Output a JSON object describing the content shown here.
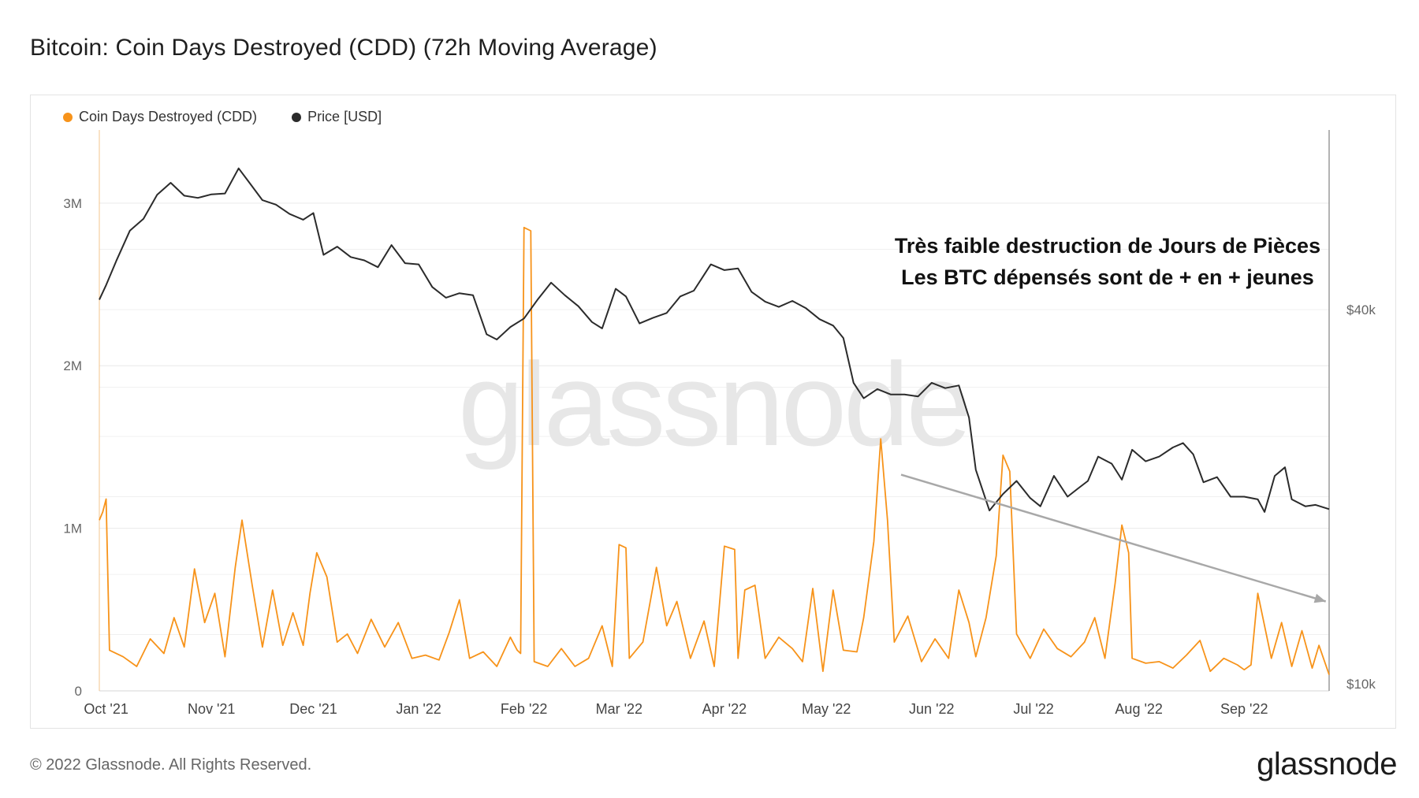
{
  "title": "Bitcoin: Coin Days Destroyed (CDD) (72h Moving Average)",
  "footer": "© 2022 Glassnode. All Rights Reserved.",
  "brand": "glassnode",
  "watermark": "glassnode",
  "annotation": {
    "line1": "Très faible destruction de Jours de Pièces",
    "line2": "Les BTC dépensés sont de + en + jeunes"
  },
  "colors": {
    "cdd": "#f7931a",
    "price": "#2b2b2b",
    "trend_arrow": "#a8a8a8",
    "grid": "#e9e9e9"
  },
  "chart_data": {
    "type": "line",
    "title": "Bitcoin: Coin Days Destroyed (CDD) (72h Moving Average)",
    "x_range": [
      "2021-09-29",
      "2022-09-26"
    ],
    "x_ticks": [
      {
        "label": "Oct '21",
        "date": "2021-10-01"
      },
      {
        "label": "Nov '21",
        "date": "2021-11-01"
      },
      {
        "label": "Dec '21",
        "date": "2021-12-01"
      },
      {
        "label": "Jan '22",
        "date": "2022-01-01"
      },
      {
        "label": "Feb '22",
        "date": "2022-02-01"
      },
      {
        "label": "Mar '22",
        "date": "2022-03-01"
      },
      {
        "label": "Apr '22",
        "date": "2022-04-01"
      },
      {
        "label": "May '22",
        "date": "2022-05-01"
      },
      {
        "label": "Jun '22",
        "date": "2022-06-01"
      },
      {
        "label": "Jul '22",
        "date": "2022-07-01"
      },
      {
        "label": "Aug '22",
        "date": "2022-08-01"
      },
      {
        "label": "Sep '22",
        "date": "2022-09-01"
      }
    ],
    "y_left": {
      "min": 0,
      "max": 3450000,
      "ticks": [
        {
          "label": "0",
          "value": 0
        },
        {
          "label": "1M",
          "value": 1000000
        },
        {
          "label": "2M",
          "value": 2000000
        },
        {
          "label": "3M",
          "value": 3000000
        }
      ]
    },
    "y_right": {
      "scale": "log",
      "ticks": [
        {
          "label": "$10k",
          "value": 10000
        },
        {
          "label": "$40k",
          "value": 40000
        }
      ]
    },
    "legend": [
      {
        "name": "Coin Days Destroyed (CDD)",
        "color": "#f7931a"
      },
      {
        "name": "Price [USD]",
        "color": "#2b2b2b"
      }
    ],
    "series": [
      {
        "name": "Coin Days Destroyed (CDD)",
        "axis": "left",
        "color": "#f7931a",
        "points": [
          [
            "2021-09-29",
            1050000
          ],
          [
            "2021-09-30",
            1100000
          ],
          [
            "2021-10-01",
            1180000
          ],
          [
            "2021-10-02",
            250000
          ],
          [
            "2021-10-06",
            210000
          ],
          [
            "2021-10-10",
            150000
          ],
          [
            "2021-10-14",
            320000
          ],
          [
            "2021-10-18",
            230000
          ],
          [
            "2021-10-21",
            450000
          ],
          [
            "2021-10-24",
            270000
          ],
          [
            "2021-10-27",
            750000
          ],
          [
            "2021-10-30",
            420000
          ],
          [
            "2021-11-02",
            600000
          ],
          [
            "2021-11-05",
            210000
          ],
          [
            "2021-11-08",
            760000
          ],
          [
            "2021-11-10",
            1050000
          ],
          [
            "2021-11-13",
            650000
          ],
          [
            "2021-11-16",
            270000
          ],
          [
            "2021-11-19",
            620000
          ],
          [
            "2021-11-22",
            280000
          ],
          [
            "2021-11-25",
            480000
          ],
          [
            "2021-11-28",
            280000
          ],
          [
            "2021-11-30",
            600000
          ],
          [
            "2021-12-02",
            850000
          ],
          [
            "2021-12-05",
            700000
          ],
          [
            "2021-12-08",
            300000
          ],
          [
            "2021-12-11",
            350000
          ],
          [
            "2021-12-14",
            230000
          ],
          [
            "2021-12-18",
            440000
          ],
          [
            "2021-12-22",
            270000
          ],
          [
            "2021-12-26",
            420000
          ],
          [
            "2021-12-30",
            200000
          ],
          [
            "2022-01-03",
            220000
          ],
          [
            "2022-01-07",
            190000
          ],
          [
            "2022-01-10",
            360000
          ],
          [
            "2022-01-13",
            560000
          ],
          [
            "2022-01-16",
            200000
          ],
          [
            "2022-01-20",
            240000
          ],
          [
            "2022-01-24",
            150000
          ],
          [
            "2022-01-28",
            330000
          ],
          [
            "2022-01-30",
            250000
          ],
          [
            "2022-01-31",
            230000
          ],
          [
            "2022-02-01",
            2850000
          ],
          [
            "2022-02-03",
            2830000
          ],
          [
            "2022-02-04",
            180000
          ],
          [
            "2022-02-08",
            150000
          ],
          [
            "2022-02-12",
            260000
          ],
          [
            "2022-02-16",
            150000
          ],
          [
            "2022-02-20",
            200000
          ],
          [
            "2022-02-24",
            400000
          ],
          [
            "2022-02-27",
            150000
          ],
          [
            "2022-03-01",
            900000
          ],
          [
            "2022-03-03",
            880000
          ],
          [
            "2022-03-04",
            200000
          ],
          [
            "2022-03-08",
            300000
          ],
          [
            "2022-03-12",
            760000
          ],
          [
            "2022-03-15",
            400000
          ],
          [
            "2022-03-18",
            550000
          ],
          [
            "2022-03-22",
            200000
          ],
          [
            "2022-03-26",
            430000
          ],
          [
            "2022-03-29",
            150000
          ],
          [
            "2022-04-01",
            890000
          ],
          [
            "2022-04-04",
            870000
          ],
          [
            "2022-04-05",
            200000
          ],
          [
            "2022-04-07",
            620000
          ],
          [
            "2022-04-10",
            650000
          ],
          [
            "2022-04-13",
            200000
          ],
          [
            "2022-04-17",
            330000
          ],
          [
            "2022-04-21",
            260000
          ],
          [
            "2022-04-24",
            180000
          ],
          [
            "2022-04-27",
            630000
          ],
          [
            "2022-04-30",
            120000
          ],
          [
            "2022-05-03",
            620000
          ],
          [
            "2022-05-06",
            250000
          ],
          [
            "2022-05-10",
            240000
          ],
          [
            "2022-05-12",
            450000
          ],
          [
            "2022-05-15",
            920000
          ],
          [
            "2022-05-17",
            1550000
          ],
          [
            "2022-05-19",
            1050000
          ],
          [
            "2022-05-21",
            300000
          ],
          [
            "2022-05-25",
            460000
          ],
          [
            "2022-05-29",
            180000
          ],
          [
            "2022-06-02",
            320000
          ],
          [
            "2022-06-06",
            200000
          ],
          [
            "2022-06-09",
            620000
          ],
          [
            "2022-06-12",
            420000
          ],
          [
            "2022-06-14",
            210000
          ],
          [
            "2022-06-17",
            450000
          ],
          [
            "2022-06-20",
            830000
          ],
          [
            "2022-06-22",
            1450000
          ],
          [
            "2022-06-24",
            1350000
          ],
          [
            "2022-06-26",
            350000
          ],
          [
            "2022-06-30",
            200000
          ],
          [
            "2022-07-04",
            380000
          ],
          [
            "2022-07-08",
            260000
          ],
          [
            "2022-07-12",
            210000
          ],
          [
            "2022-07-16",
            300000
          ],
          [
            "2022-07-19",
            450000
          ],
          [
            "2022-07-22",
            200000
          ],
          [
            "2022-07-25",
            660000
          ],
          [
            "2022-07-27",
            1020000
          ],
          [
            "2022-07-29",
            850000
          ],
          [
            "2022-07-30",
            200000
          ],
          [
            "2022-08-03",
            170000
          ],
          [
            "2022-08-07",
            180000
          ],
          [
            "2022-08-11",
            140000
          ],
          [
            "2022-08-15",
            220000
          ],
          [
            "2022-08-19",
            310000
          ],
          [
            "2022-08-22",
            120000
          ],
          [
            "2022-08-26",
            200000
          ],
          [
            "2022-08-30",
            160000
          ],
          [
            "2022-09-01",
            130000
          ],
          [
            "2022-09-03",
            160000
          ],
          [
            "2022-09-05",
            600000
          ],
          [
            "2022-09-07",
            400000
          ],
          [
            "2022-09-09",
            200000
          ],
          [
            "2022-09-12",
            420000
          ],
          [
            "2022-09-15",
            150000
          ],
          [
            "2022-09-18",
            370000
          ],
          [
            "2022-09-21",
            140000
          ],
          [
            "2022-09-23",
            280000
          ],
          [
            "2022-09-26",
            100000
          ]
        ]
      },
      {
        "name": "Price [USD]",
        "axis": "right",
        "color": "#2b2b2b",
        "points": [
          [
            "2021-09-29",
            41500
          ],
          [
            "2021-10-01",
            43800
          ],
          [
            "2021-10-04",
            47900
          ],
          [
            "2021-10-08",
            53600
          ],
          [
            "2021-10-12",
            56000
          ],
          [
            "2021-10-16",
            61200
          ],
          [
            "2021-10-20",
            64000
          ],
          [
            "2021-10-24",
            61000
          ],
          [
            "2021-10-28",
            60500
          ],
          [
            "2021-11-01",
            61300
          ],
          [
            "2021-11-05",
            61500
          ],
          [
            "2021-11-09",
            67500
          ],
          [
            "2021-11-12",
            64200
          ],
          [
            "2021-11-16",
            60000
          ],
          [
            "2021-11-20",
            59000
          ],
          [
            "2021-11-24",
            57000
          ],
          [
            "2021-11-28",
            55800
          ],
          [
            "2021-12-01",
            57200
          ],
          [
            "2021-12-04",
            49000
          ],
          [
            "2021-12-08",
            50500
          ],
          [
            "2021-12-12",
            48600
          ],
          [
            "2021-12-16",
            48000
          ],
          [
            "2021-12-20",
            46800
          ],
          [
            "2021-12-24",
            50800
          ],
          [
            "2021-12-28",
            47500
          ],
          [
            "2022-01-01",
            47300
          ],
          [
            "2022-01-05",
            43500
          ],
          [
            "2022-01-09",
            41800
          ],
          [
            "2022-01-13",
            42500
          ],
          [
            "2022-01-17",
            42200
          ],
          [
            "2022-01-21",
            36500
          ],
          [
            "2022-01-24",
            35800
          ],
          [
            "2022-01-28",
            37500
          ],
          [
            "2022-02-01",
            38700
          ],
          [
            "2022-02-05",
            41500
          ],
          [
            "2022-02-09",
            44200
          ],
          [
            "2022-02-13",
            42200
          ],
          [
            "2022-02-17",
            40500
          ],
          [
            "2022-02-21",
            38200
          ],
          [
            "2022-02-24",
            37300
          ],
          [
            "2022-02-28",
            43200
          ],
          [
            "2022-03-03",
            42000
          ],
          [
            "2022-03-07",
            38000
          ],
          [
            "2022-03-11",
            38800
          ],
          [
            "2022-03-15",
            39500
          ],
          [
            "2022-03-19",
            42000
          ],
          [
            "2022-03-23",
            42900
          ],
          [
            "2022-03-28",
            47300
          ],
          [
            "2022-04-01",
            46300
          ],
          [
            "2022-04-05",
            46600
          ],
          [
            "2022-04-09",
            42700
          ],
          [
            "2022-04-13",
            41200
          ],
          [
            "2022-04-17",
            40400
          ],
          [
            "2022-04-21",
            41300
          ],
          [
            "2022-04-25",
            40200
          ],
          [
            "2022-04-29",
            38600
          ],
          [
            "2022-05-03",
            37700
          ],
          [
            "2022-05-06",
            36000
          ],
          [
            "2022-05-09",
            30500
          ],
          [
            "2022-05-12",
            28800
          ],
          [
            "2022-05-16",
            29800
          ],
          [
            "2022-05-20",
            29200
          ],
          [
            "2022-05-24",
            29200
          ],
          [
            "2022-05-28",
            29000
          ],
          [
            "2022-06-01",
            30500
          ],
          [
            "2022-06-05",
            29900
          ],
          [
            "2022-06-09",
            30200
          ],
          [
            "2022-06-12",
            26800
          ],
          [
            "2022-06-14",
            22100
          ],
          [
            "2022-06-18",
            19000
          ],
          [
            "2022-06-22",
            20200
          ],
          [
            "2022-06-26",
            21200
          ],
          [
            "2022-06-30",
            19900
          ],
          [
            "2022-07-03",
            19300
          ],
          [
            "2022-07-07",
            21600
          ],
          [
            "2022-07-11",
            20000
          ],
          [
            "2022-07-14",
            20600
          ],
          [
            "2022-07-17",
            21200
          ],
          [
            "2022-07-20",
            23200
          ],
          [
            "2022-07-24",
            22600
          ],
          [
            "2022-07-27",
            21300
          ],
          [
            "2022-07-30",
            23800
          ],
          [
            "2022-08-03",
            22800
          ],
          [
            "2022-08-07",
            23200
          ],
          [
            "2022-08-11",
            24000
          ],
          [
            "2022-08-14",
            24400
          ],
          [
            "2022-08-17",
            23400
          ],
          [
            "2022-08-20",
            21100
          ],
          [
            "2022-08-24",
            21500
          ],
          [
            "2022-08-28",
            20000
          ],
          [
            "2022-09-01",
            20000
          ],
          [
            "2022-09-05",
            19800
          ],
          [
            "2022-09-07",
            18900
          ],
          [
            "2022-09-10",
            21600
          ],
          [
            "2022-09-13",
            22300
          ],
          [
            "2022-09-15",
            19800
          ],
          [
            "2022-09-19",
            19300
          ],
          [
            "2022-09-22",
            19400
          ],
          [
            "2022-09-26",
            19100
          ]
        ]
      }
    ],
    "annotations": [
      {
        "type": "arrow",
        "from": [
          "2022-05-23",
          1330000
        ],
        "to": [
          "2022-09-25",
          550000
        ],
        "color": "#a8a8a8"
      }
    ]
  }
}
